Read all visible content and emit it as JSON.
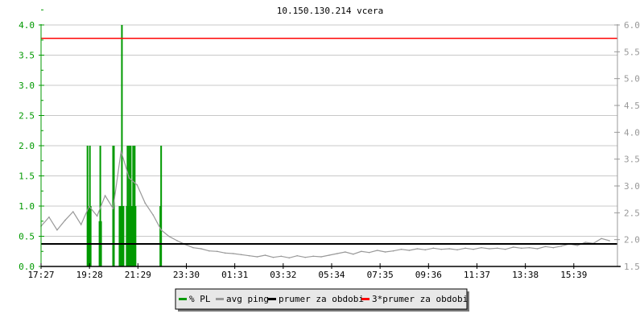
{
  "chart_data": {
    "type": "line",
    "title": "10.150.130.214 vcera",
    "colors": {
      "pl": "#009900",
      "ping": "#999999",
      "mean": "#000000",
      "mean3": "#ff0000",
      "grid": "#c8c8c8",
      "left_axis": "#009900",
      "right_axis": "#999999"
    },
    "x_start": "17:27",
    "x_end": "17:27",
    "x_ticks": [
      "17:27",
      "19:28",
      "21:29",
      "23:30",
      "01:31",
      "03:32",
      "05:34",
      "07:35",
      "09:36",
      "11:37",
      "13:38",
      "15:39"
    ],
    "left_axis": {
      "ylim": [
        0,
        4
      ],
      "ticks": [
        "0.0",
        "0.5",
        "1.0",
        "1.5",
        "2.0",
        "2.5",
        "3.0",
        "3.5",
        "4.0"
      ]
    },
    "right_axis": {
      "ylim": [
        1.5,
        6.0
      ],
      "ticks": [
        "1.5",
        "2.0",
        "2.5",
        "3.0",
        "3.5",
        "4.0",
        "4.5",
        "5.0",
        "5.5",
        "6.0"
      ]
    },
    "grid": true,
    "legend_placement": "bottom-center",
    "series": [
      {
        "name": "% PL",
        "axis": "left",
        "kind": "impulses",
        "points": [
          [
            "19:23",
            2
          ],
          [
            "19:25",
            1
          ],
          [
            "19:27",
            1
          ],
          [
            "19:29",
            2
          ],
          [
            "19:31",
            1
          ],
          [
            "19:53",
            0.75
          ],
          [
            "19:55",
            2
          ],
          [
            "19:57",
            0.75
          ],
          [
            "20:27",
            2
          ],
          [
            "20:29",
            2
          ],
          [
            "20:43",
            1
          ],
          [
            "20:45",
            1
          ],
          [
            "20:47",
            1
          ],
          [
            "20:49",
            4
          ],
          [
            "20:51",
            1
          ],
          [
            "20:53",
            1
          ],
          [
            "21:01",
            1
          ],
          [
            "21:03",
            2
          ],
          [
            "21:05",
            1
          ],
          [
            "21:07",
            2
          ],
          [
            "21:09",
            1
          ],
          [
            "21:11",
            2
          ],
          [
            "21:13",
            1
          ],
          [
            "21:15",
            1
          ],
          [
            "21:17",
            2
          ],
          [
            "21:19",
            1
          ],
          [
            "21:21",
            2
          ],
          [
            "21:23",
            1
          ],
          [
            "22:25",
            1
          ],
          [
            "22:27",
            2
          ]
        ]
      },
      {
        "name": "avg ping",
        "axis": "right",
        "kind": "line",
        "step_minutes": 20,
        "values": [
          2.25,
          2.42,
          2.18,
          2.36,
          2.52,
          2.28,
          2.62,
          2.44,
          2.82,
          2.58,
          3.65,
          3.15,
          3.02,
          2.68,
          2.46,
          2.18,
          2.06,
          1.98,
          1.91,
          1.85,
          1.83,
          1.79,
          1.78,
          1.75,
          1.74,
          1.72,
          1.7,
          1.68,
          1.71,
          1.67,
          1.69,
          1.66,
          1.7,
          1.67,
          1.69,
          1.68,
          1.71,
          1.74,
          1.77,
          1.73,
          1.78,
          1.76,
          1.8,
          1.77,
          1.79,
          1.82,
          1.8,
          1.83,
          1.81,
          1.84,
          1.82,
          1.83,
          1.81,
          1.84,
          1.82,
          1.85,
          1.83,
          1.84,
          1.82,
          1.86,
          1.84,
          1.85,
          1.83,
          1.87,
          1.85,
          1.88,
          1.92,
          1.89,
          1.95,
          1.93,
          2.02,
          1.98
        ]
      },
      {
        "name": "prumer za obdobi",
        "axis": "right",
        "kind": "hline",
        "value": 1.92
      },
      {
        "name": "3*prumer za obdobi",
        "axis": "right",
        "kind": "hline",
        "value": 5.75
      }
    ]
  }
}
